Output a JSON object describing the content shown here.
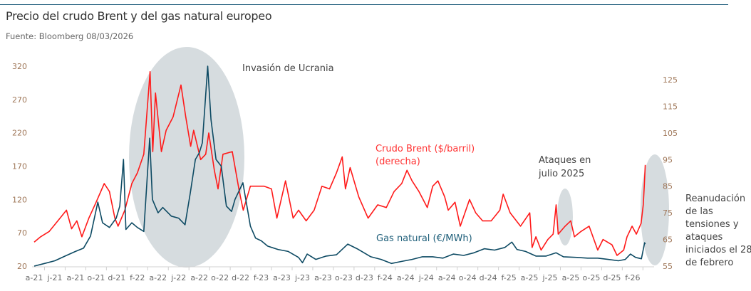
{
  "title": "Precio del crudo Brent y del gas natural europeo",
  "source": "Fuente: Bloomberg 08/03/2026",
  "colors": {
    "brent": "#ff1a1a",
    "gas": "#0d4a63",
    "highlight": "#d6dcdf",
    "rule": "#1b5a7a"
  },
  "annotations": {
    "invasion": "Invasión de Ucrania",
    "brent_label": [
      "Crudo Brent ($/barril)",
      "(derecha)"
    ],
    "gas_label": "Gas natural (€/MWh)",
    "july": [
      "Ataques en",
      "julio 2025"
    ],
    "feb": [
      "Reanudación",
      "de las",
      "tensiones y",
      "ataques",
      "iniciados el 28",
      "de febrero"
    ]
  },
  "chart_data": {
    "type": "line",
    "title": "Precio del crudo Brent y del gas natural europeo",
    "grid": false,
    "x_tick_labels": [
      "a-21",
      "j-21",
      "a-21",
      "o-21",
      "d-21",
      "f-22",
      "a-22",
      "j-22",
      "a-22",
      "o-22",
      "d-22",
      "f-23",
      "a-23",
      "j-23",
      "a-23",
      "o-23",
      "d-23",
      "f-24",
      "a-24",
      "j-24",
      "a-24",
      "o-24",
      "d-24",
      "f-25",
      "a-25",
      "j-25",
      "a-25",
      "o-25",
      "d-25",
      "f-26"
    ],
    "x_range": [
      "2021-04-01",
      "2026-03-08"
    ],
    "y_left": {
      "ticks": [
        20,
        70,
        120,
        170,
        220,
        270,
        320
      ],
      "range": [
        20,
        320
      ]
    },
    "y_right": {
      "ticks": [
        55,
        65,
        75,
        85,
        95,
        105,
        115,
        125
      ],
      "range": [
        55,
        125
      ]
    },
    "series": [
      {
        "name": "Crudo Brent ($/barril) (derecha)",
        "axis": "right",
        "data": [
          [
            "2021-04-01",
            64
          ],
          [
            "2021-04-20",
            66
          ],
          [
            "2021-05-15",
            68
          ],
          [
            "2021-06-10",
            72
          ],
          [
            "2021-07-05",
            76
          ],
          [
            "2021-07-20",
            69
          ],
          [
            "2021-08-05",
            72
          ],
          [
            "2021-08-20",
            66
          ],
          [
            "2021-09-10",
            73
          ],
          [
            "2021-10-01",
            79
          ],
          [
            "2021-10-25",
            86
          ],
          [
            "2021-11-10",
            83
          ],
          [
            "2021-11-26",
            73
          ],
          [
            "2021-12-05",
            70
          ],
          [
            "2021-12-25",
            76
          ],
          [
            "2022-01-15",
            86
          ],
          [
            "2022-02-01",
            90
          ],
          [
            "2022-02-20",
            97
          ],
          [
            "2022-03-08",
            128
          ],
          [
            "2022-03-16",
            98
          ],
          [
            "2022-03-24",
            120
          ],
          [
            "2022-04-11",
            98
          ],
          [
            "2022-04-25",
            106
          ],
          [
            "2022-05-15",
            111
          ],
          [
            "2022-06-08",
            123
          ],
          [
            "2022-06-22",
            111
          ],
          [
            "2022-07-06",
            100
          ],
          [
            "2022-07-15",
            106
          ],
          [
            "2022-08-05",
            95
          ],
          [
            "2022-08-20",
            97
          ],
          [
            "2022-08-29",
            105
          ],
          [
            "2022-09-15",
            91
          ],
          [
            "2022-09-26",
            84
          ],
          [
            "2022-10-10",
            97
          ],
          [
            "2022-11-07",
            98
          ],
          [
            "2022-11-28",
            83
          ],
          [
            "2022-12-09",
            76
          ],
          [
            "2022-12-30",
            85
          ],
          [
            "2023-01-15",
            85
          ],
          [
            "2023-02-10",
            85
          ],
          [
            "2023-03-01",
            84
          ],
          [
            "2023-03-17",
            73
          ],
          [
            "2023-04-12",
            87
          ],
          [
            "2023-05-04",
            73
          ],
          [
            "2023-05-20",
            76
          ],
          [
            "2023-06-12",
            72
          ],
          [
            "2023-07-05",
            76
          ],
          [
            "2023-07-28",
            85
          ],
          [
            "2023-08-20",
            84
          ],
          [
            "2023-09-10",
            90
          ],
          [
            "2023-09-27",
            96
          ],
          [
            "2023-10-06",
            84
          ],
          [
            "2023-10-20",
            92
          ],
          [
            "2023-11-15",
            81
          ],
          [
            "2023-12-12",
            73
          ],
          [
            "2024-01-10",
            78
          ],
          [
            "2024-02-05",
            77
          ],
          [
            "2024-02-28",
            83
          ],
          [
            "2024-03-20",
            86
          ],
          [
            "2024-04-05",
            91
          ],
          [
            "2024-04-20",
            87
          ],
          [
            "2024-05-10",
            83
          ],
          [
            "2024-06-04",
            77
          ],
          [
            "2024-06-20",
            85
          ],
          [
            "2024-07-05",
            87
          ],
          [
            "2024-07-25",
            81
          ],
          [
            "2024-08-05",
            76
          ],
          [
            "2024-08-25",
            79
          ],
          [
            "2024-09-10",
            70
          ],
          [
            "2024-10-07",
            80
          ],
          [
            "2024-10-25",
            75
          ],
          [
            "2024-11-15",
            72
          ],
          [
            "2024-12-10",
            72
          ],
          [
            "2025-01-05",
            76
          ],
          [
            "2025-01-15",
            82
          ],
          [
            "2025-02-05",
            75
          ],
          [
            "2025-03-05",
            70
          ],
          [
            "2025-04-02",
            75
          ],
          [
            "2025-04-09",
            62
          ],
          [
            "2025-04-20",
            66
          ],
          [
            "2025-05-05",
            61
          ],
          [
            "2025-05-25",
            65
          ],
          [
            "2025-06-10",
            67
          ],
          [
            "2025-06-19",
            78
          ],
          [
            "2025-06-25",
            67
          ],
          [
            "2025-07-15",
            70
          ],
          [
            "2025-08-01",
            72
          ],
          [
            "2025-08-12",
            66
          ],
          [
            "2025-09-01",
            68
          ],
          [
            "2025-09-25",
            70
          ],
          [
            "2025-10-20",
            61
          ],
          [
            "2025-11-05",
            65
          ],
          [
            "2025-12-01",
            63
          ],
          [
            "2025-12-16",
            59
          ],
          [
            "2026-01-05",
            61
          ],
          [
            "2026-01-15",
            66
          ],
          [
            "2026-01-30",
            70
          ],
          [
            "2026-02-12",
            67
          ],
          [
            "2026-02-26",
            71
          ],
          [
            "2026-03-02",
            78
          ],
          [
            "2026-03-05",
            85
          ],
          [
            "2026-03-08",
            93
          ]
        ]
      },
      {
        "name": "Gas natural (€/MWh)",
        "axis": "left",
        "data": [
          [
            "2021-04-01",
            20
          ],
          [
            "2021-05-01",
            24
          ],
          [
            "2021-06-01",
            28
          ],
          [
            "2021-07-01",
            35
          ],
          [
            "2021-08-01",
            42
          ],
          [
            "2021-08-25",
            47
          ],
          [
            "2021-09-15",
            65
          ],
          [
            "2021-10-06",
            116
          ],
          [
            "2021-10-20",
            85
          ],
          [
            "2021-11-10",
            78
          ],
          [
            "2021-11-30",
            92
          ],
          [
            "2021-12-10",
            110
          ],
          [
            "2021-12-21",
            180
          ],
          [
            "2021-12-28",
            75
          ],
          [
            "2022-01-15",
            85
          ],
          [
            "2022-02-01",
            78
          ],
          [
            "2022-02-20",
            72
          ],
          [
            "2022-03-07",
            212
          ],
          [
            "2022-03-15",
            120
          ],
          [
            "2022-04-01",
            100
          ],
          [
            "2022-04-15",
            108
          ],
          [
            "2022-05-10",
            95
          ],
          [
            "2022-06-01",
            92
          ],
          [
            "2022-06-20",
            82
          ],
          [
            "2022-07-05",
            130
          ],
          [
            "2022-07-20",
            180
          ],
          [
            "2022-08-01",
            190
          ],
          [
            "2022-08-10",
            205
          ],
          [
            "2022-08-26",
            320
          ],
          [
            "2022-09-05",
            240
          ],
          [
            "2022-09-20",
            180
          ],
          [
            "2022-10-05",
            170
          ],
          [
            "2022-10-20",
            110
          ],
          [
            "2022-11-05",
            102
          ],
          [
            "2022-11-15",
            120
          ],
          [
            "2022-12-08",
            145
          ],
          [
            "2022-12-30",
            80
          ],
          [
            "2023-01-15",
            62
          ],
          [
            "2023-02-01",
            58
          ],
          [
            "2023-02-20",
            50
          ],
          [
            "2023-03-20",
            45
          ],
          [
            "2023-04-20",
            42
          ],
          [
            "2023-05-20",
            33
          ],
          [
            "2023-06-01",
            25
          ],
          [
            "2023-06-15",
            38
          ],
          [
            "2023-07-10",
            30
          ],
          [
            "2023-08-10",
            35
          ],
          [
            "2023-09-10",
            37
          ],
          [
            "2023-10-13",
            53
          ],
          [
            "2023-11-10",
            46
          ],
          [
            "2023-12-20",
            34
          ],
          [
            "2024-01-20",
            30
          ],
          [
            "2024-02-20",
            24
          ],
          [
            "2024-03-20",
            27
          ],
          [
            "2024-04-20",
            30
          ],
          [
            "2024-05-20",
            34
          ],
          [
            "2024-06-20",
            34
          ],
          [
            "2024-07-20",
            32
          ],
          [
            "2024-08-20",
            38
          ],
          [
            "2024-09-20",
            36
          ],
          [
            "2024-10-20",
            40
          ],
          [
            "2024-11-20",
            46
          ],
          [
            "2024-12-20",
            44
          ],
          [
            "2025-01-20",
            48
          ],
          [
            "2025-02-10",
            56
          ],
          [
            "2025-02-25",
            45
          ],
          [
            "2025-03-20",
            42
          ],
          [
            "2025-04-20",
            35
          ],
          [
            "2025-05-20",
            35
          ],
          [
            "2025-06-19",
            40
          ],
          [
            "2025-07-10",
            34
          ],
          [
            "2025-08-20",
            33
          ],
          [
            "2025-09-20",
            32
          ],
          [
            "2025-10-20",
            32
          ],
          [
            "2025-11-20",
            30
          ],
          [
            "2025-12-20",
            28
          ],
          [
            "2026-01-10",
            30
          ],
          [
            "2026-01-25",
            38
          ],
          [
            "2026-02-10",
            33
          ],
          [
            "2026-02-27",
            31
          ],
          [
            "2026-03-02",
            45
          ],
          [
            "2026-03-06",
            55
          ],
          [
            "2026-03-08",
            53
          ]
        ]
      }
    ]
  }
}
